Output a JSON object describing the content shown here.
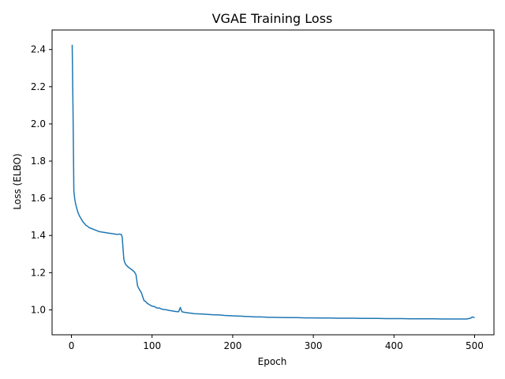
{
  "chart_data": {
    "type": "line",
    "title": "VGAE Training Loss",
    "xlabel": "Epoch",
    "ylabel": "Loss (ELBO)",
    "xlim": [
      -24,
      524
    ],
    "ylim": [
      0.866,
      2.505
    ],
    "xticks": [
      0,
      100,
      200,
      300,
      400,
      500
    ],
    "yticks": [
      1.0,
      1.2,
      1.4,
      1.6,
      1.8,
      2.0,
      2.2,
      2.4
    ],
    "xtick_labels": [
      "0",
      "100",
      "200",
      "300",
      "400",
      "500"
    ],
    "ytick_labels": [
      "1.0",
      "1.2",
      "1.4",
      "1.6",
      "1.8",
      "2.0",
      "2.2",
      "2.4"
    ],
    "grid": false,
    "series": [
      {
        "color": "#1f77b4",
        "points": [
          [
            1,
            2.425
          ],
          [
            2,
            2.05
          ],
          [
            3,
            1.64
          ],
          [
            4,
            1.6
          ],
          [
            5,
            1.575
          ],
          [
            6,
            1.555
          ],
          [
            7,
            1.54
          ],
          [
            8,
            1.525
          ],
          [
            10,
            1.505
          ],
          [
            12,
            1.49
          ],
          [
            14,
            1.475
          ],
          [
            16,
            1.465
          ],
          [
            18,
            1.455
          ],
          [
            20,
            1.45
          ],
          [
            22,
            1.442
          ],
          [
            25,
            1.437
          ],
          [
            28,
            1.432
          ],
          [
            31,
            1.427
          ],
          [
            34,
            1.422
          ],
          [
            37,
            1.419
          ],
          [
            40,
            1.417
          ],
          [
            43,
            1.415
          ],
          [
            46,
            1.413
          ],
          [
            49,
            1.411
          ],
          [
            52,
            1.409
          ],
          [
            55,
            1.407
          ],
          [
            58,
            1.406
          ],
          [
            60,
            1.408
          ],
          [
            62,
            1.405
          ],
          [
            63,
            1.39
          ],
          [
            64,
            1.33
          ],
          [
            65,
            1.275
          ],
          [
            66,
            1.255
          ],
          [
            68,
            1.24
          ],
          [
            70,
            1.232
          ],
          [
            72,
            1.225
          ],
          [
            74,
            1.219
          ],
          [
            76,
            1.212
          ],
          [
            78,
            1.205
          ],
          [
            80,
            1.19
          ],
          [
            81,
            1.16
          ],
          [
            82,
            1.13
          ],
          [
            83,
            1.12
          ],
          [
            85,
            1.105
          ],
          [
            87,
            1.09
          ],
          [
            88,
            1.075
          ],
          [
            90,
            1.05
          ],
          [
            92,
            1.045
          ],
          [
            94,
            1.035
          ],
          [
            96,
            1.03
          ],
          [
            98,
            1.025
          ],
          [
            100,
            1.02
          ],
          [
            103,
            1.018
          ],
          [
            106,
            1.01
          ],
          [
            109,
            1.01
          ],
          [
            112,
            1.004
          ],
          [
            115,
            1.002
          ],
          [
            118,
            1.0
          ],
          [
            121,
            0.997
          ],
          [
            124,
            0.995
          ],
          [
            127,
            0.993
          ],
          [
            130,
            0.991
          ],
          [
            133,
            0.99
          ],
          [
            135,
            1.013
          ],
          [
            137,
            0.99
          ],
          [
            140,
            0.987
          ],
          [
            143,
            0.985
          ],
          [
            146,
            0.983
          ],
          [
            149,
            0.982
          ],
          [
            152,
            0.98
          ],
          [
            155,
            0.979
          ],
          [
            160,
            0.978
          ],
          [
            165,
            0.977
          ],
          [
            170,
            0.975
          ],
          [
            175,
            0.974
          ],
          [
            180,
            0.973
          ],
          [
            185,
            0.972
          ],
          [
            190,
            0.97
          ],
          [
            195,
            0.969
          ],
          [
            200,
            0.968
          ],
          [
            205,
            0.967
          ],
          [
            210,
            0.966
          ],
          [
            215,
            0.965
          ],
          [
            220,
            0.964
          ],
          [
            225,
            0.963
          ],
          [
            230,
            0.962
          ],
          [
            235,
            0.962
          ],
          [
            240,
            0.961
          ],
          [
            245,
            0.96
          ],
          [
            250,
            0.96
          ],
          [
            260,
            0.959
          ],
          [
            270,
            0.958
          ],
          [
            280,
            0.958
          ],
          [
            290,
            0.957
          ],
          [
            300,
            0.957
          ],
          [
            310,
            0.956
          ],
          [
            320,
            0.956
          ],
          [
            330,
            0.955
          ],
          [
            340,
            0.955
          ],
          [
            350,
            0.955
          ],
          [
            360,
            0.954
          ],
          [
            370,
            0.954
          ],
          [
            380,
            0.954
          ],
          [
            390,
            0.953
          ],
          [
            400,
            0.953
          ],
          [
            410,
            0.953
          ],
          [
            420,
            0.952
          ],
          [
            430,
            0.952
          ],
          [
            440,
            0.952
          ],
          [
            450,
            0.952
          ],
          [
            460,
            0.951
          ],
          [
            470,
            0.951
          ],
          [
            480,
            0.951
          ],
          [
            490,
            0.951
          ],
          [
            495,
            0.955
          ],
          [
            497,
            0.962
          ],
          [
            500,
            0.958
          ]
        ]
      }
    ]
  }
}
